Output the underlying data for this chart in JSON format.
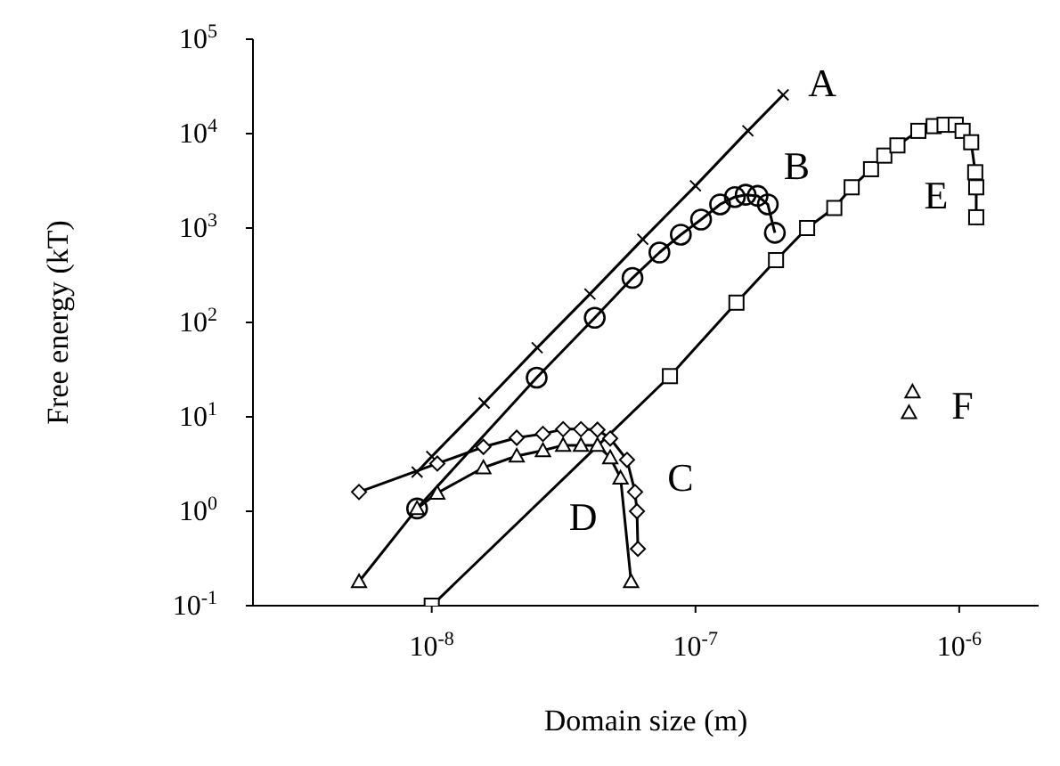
{
  "chart_data": {
    "type": "line",
    "xlabel": "Domain size (m)",
    "ylabel": "Free energy (kT)",
    "log": "xy",
    "grid": false,
    "xlim": [
      2.1e-09,
      2e-06
    ],
    "xticks": [
      {
        "value": 1e-08,
        "label": "10$^{-8}$"
      },
      {
        "value": 1e-07,
        "label": "10$^{-7}$"
      },
      {
        "value": 1e-06,
        "label": "10$^{-6}$"
      }
    ],
    "ylim": [
      0.1,
      100000
    ],
    "yticks": [
      {
        "value": 0.1,
        "label": "10$^{-1}$"
      },
      {
        "value": 1,
        "label": "10$^{0}$"
      },
      {
        "value": 10,
        "label": "10$^{1}$"
      },
      {
        "value": 100,
        "label": "10$^{2}$"
      },
      {
        "value": 1000,
        "label": "10$^{3}$"
      },
      {
        "value": 10000,
        "label": "10$^{4}$"
      },
      {
        "value": 100000,
        "label": "10$^{5}$"
      }
    ],
    "series": [
      {
        "name": "A",
        "marker": "cross",
        "color": "#000000",
        "x": [
          8.8e-09,
          1e-08,
          1.58e-08,
          2.51e-08,
          3.98e-08,
          6.31e-08,
          1e-07,
          1.58e-07,
          2.15e-07
        ],
        "values": [
          2.6,
          3.8,
          14,
          54,
          200,
          760,
          2800,
          10700,
          25700
        ]
      },
      {
        "name": "B",
        "marker": "circle",
        "color": "#000000",
        "x": [
          8.8e-09,
          2.5e-08,
          4.15e-08,
          5.77e-08,
          7.3e-08,
          8.8e-08,
          1.05e-07,
          1.24e-07,
          1.41e-07,
          1.55e-07,
          1.72e-07,
          1.88e-07,
          2e-07
        ],
        "values": [
          1.07,
          26,
          112,
          296,
          550,
          850,
          1230,
          1780,
          2130,
          2250,
          2190,
          1780,
          890
        ]
      },
      {
        "name": "C",
        "marker": "diamond",
        "color": "#000000",
        "x": [
          5.3e-09,
          1.05e-08,
          1.57e-08,
          2.1e-08,
          2.64e-08,
          3.15e-08,
          3.68e-08,
          4.25e-08,
          4.75e-08,
          5.5e-08,
          5.9e-08,
          6e-08,
          6.05e-08
        ],
        "values": [
          1.6,
          3.2,
          4.8,
          6,
          6.6,
          7.4,
          7.4,
          7.3,
          5.9,
          3.5,
          1.6,
          1,
          0.4
        ]
      },
      {
        "name": "D",
        "marker": "triangle",
        "color": "#000000",
        "x": [
          5.3e-09,
          8.8e-09,
          1.05e-08,
          1.57e-08,
          2.1e-08,
          2.64e-08,
          3.15e-08,
          3.68e-08,
          4.25e-08,
          4.75e-08,
          5.2e-08,
          5.7e-08
        ],
        "values": [
          0.18,
          1.07,
          1.56,
          2.9,
          3.85,
          4.4,
          5,
          5,
          5,
          3.7,
          2.25,
          0.18
        ]
      },
      {
        "name": "E",
        "marker": "square",
        "color": "#000000",
        "x": [
          1e-08,
          8e-08,
          1.43e-07,
          2.02e-07,
          2.65e-07,
          3.36e-07,
          3.91e-07,
          4.63e-07,
          5.2e-07,
          5.83e-07,
          7e-07,
          8e-07,
          8.8e-07,
          9.7e-07,
          1.03e-06,
          1.11e-06,
          1.15e-06,
          1.16e-06,
          1.16e-06
        ],
        "values": [
          0.1,
          27,
          162,
          457,
          1000,
          1630,
          2700,
          4200,
          5850,
          7500,
          10700,
          12000,
          12400,
          12400,
          10700,
          8100,
          3900,
          2700,
          1300
        ]
      },
      {
        "name": "F",
        "type": "scatter",
        "marker": "triangle",
        "color": "#000000",
        "x": [
          6.65e-07,
          6.45e-07
        ],
        "values": [
          18.4,
          11.1
        ]
      }
    ]
  }
}
